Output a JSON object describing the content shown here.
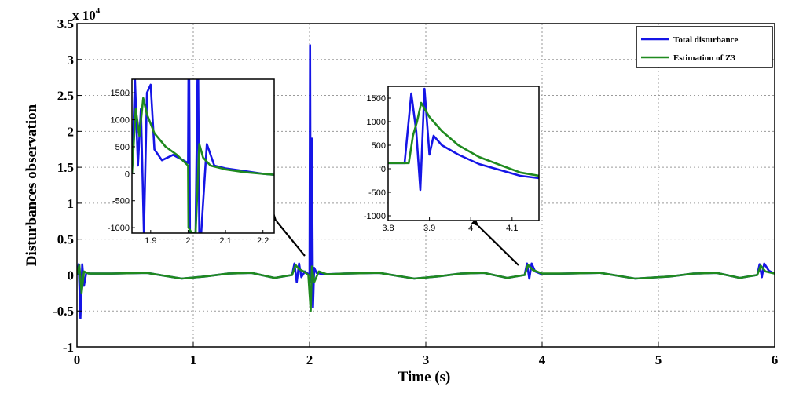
{
  "chart_data": {
    "type": "line",
    "xlabel": "Time (s)",
    "ylabel": "Disturbances observation",
    "y_multiplier": "x 10",
    "y_exponent": "4",
    "xlim": [
      0,
      6
    ],
    "ylim": [
      -1,
      3.5
    ],
    "xticks": [
      "0",
      "1",
      "2",
      "3",
      "4",
      "5",
      "6"
    ],
    "yticks": [
      "-1",
      "-0.5",
      "0",
      "0.5",
      "1",
      "1.5",
      "2",
      "2.5",
      "3",
      "3.5"
    ],
    "grid": true,
    "legend_position": "top-right",
    "colors": {
      "total": "#1515e6",
      "estimation": "#1f8a1f"
    },
    "series": [
      {
        "name": "Total disturbance",
        "color": "#1515e6",
        "x": [
          0,
          0.015,
          0.03,
          0.045,
          0.06,
          0.08,
          0.12,
          0.3,
          0.6,
          0.9,
          1.1,
          1.3,
          1.5,
          1.7,
          1.85,
          1.87,
          1.89,
          1.91,
          1.93,
          1.96,
          2.0,
          2.005,
          2.01,
          2.02,
          2.03,
          2.04,
          2.06,
          2.12,
          2.3,
          2.6,
          2.9,
          3.1,
          3.3,
          3.5,
          3.7,
          3.85,
          3.87,
          3.89,
          3.91,
          3.94,
          4.0,
          4.2,
          4.5,
          4.8,
          5.1,
          5.3,
          5.5,
          5.7,
          5.85,
          5.87,
          5.89,
          5.91,
          5.95,
          6.0
        ],
        "values": [
          0,
          0.15,
          -0.6,
          0.15,
          -0.15,
          0.03,
          0.02,
          0.02,
          0.03,
          -0.05,
          -0.02,
          0.02,
          0.03,
          -0.04,
          0,
          0.16,
          -0.1,
          0.16,
          -0.03,
          0.05,
          0,
          3.2,
          -0.1,
          1.9,
          -0.45,
          0.1,
          0.03,
          0.01,
          0.02,
          0.03,
          -0.05,
          -0.02,
          0.02,
          0.03,
          -0.04,
          0,
          0.16,
          -0.05,
          0.16,
          0.05,
          0.01,
          0.02,
          0.03,
          -0.05,
          -0.02,
          0.02,
          0.03,
          -0.04,
          0,
          0.15,
          -0.03,
          0.16,
          0.06,
          0.02
        ]
      },
      {
        "name": "Estimation of Z3",
        "color": "#1f8a1f",
        "x": [
          0,
          0.02,
          0.04,
          0.06,
          0.1,
          0.3,
          0.6,
          0.9,
          1.1,
          1.3,
          1.5,
          1.7,
          1.85,
          1.88,
          1.91,
          1.95,
          1.99,
          2.01,
          2.02,
          2.04,
          2.08,
          2.15,
          2.3,
          2.6,
          2.9,
          3.1,
          3.3,
          3.5,
          3.7,
          3.85,
          3.88,
          3.92,
          4.0,
          4.2,
          4.5,
          4.8,
          5.1,
          5.3,
          5.5,
          5.7,
          5.85,
          5.88,
          5.92,
          6.0
        ],
        "values": [
          0,
          0.14,
          -0.25,
          0.05,
          0.02,
          0.02,
          0.03,
          -0.05,
          -0.02,
          0.02,
          0.03,
          -0.04,
          0,
          0.14,
          0.08,
          0.05,
          0,
          -0.5,
          0.12,
          -0.1,
          0.05,
          0.01,
          0.02,
          0.03,
          -0.05,
          -0.02,
          0.02,
          0.03,
          -0.04,
          0,
          0.14,
          0.07,
          0.02,
          0.02,
          0.03,
          -0.05,
          -0.02,
          0.02,
          0.03,
          -0.04,
          0,
          0.13,
          0.05,
          0.02
        ]
      }
    ],
    "insets": [
      {
        "xlim": [
          1.85,
          2.23
        ],
        "ylim": [
          -1100,
          1750
        ],
        "xticks": [
          "1.9",
          "2",
          "2.1",
          "2.2"
        ],
        "yticks": [
          "1500",
          "1000",
          "500",
          "0",
          "-500",
          "-1000"
        ],
        "series": [
          {
            "name": "Total disturbance",
            "x": [
              1.85,
              1.858,
              1.866,
              1.874,
              1.882,
              1.89,
              1.9,
              1.91,
              1.93,
              1.96,
              2.0,
              2.001,
              2.003,
              2.005,
              2.02,
              2.025,
              2.027,
              2.03,
              2.035,
              2.05,
              2.07,
              2.1,
              2.15,
              2.2,
              2.23
            ],
            "values": [
              0,
              1750,
              150,
              1200,
              -1100,
              1500,
              1650,
              450,
              250,
              350,
              200,
              1750,
              1750,
              -1100,
              -1100,
              1750,
              1750,
              -1100,
              -1100,
              550,
              150,
              100,
              50,
              0,
              -20
            ]
          },
          {
            "name": "Estimation of Z3",
            "x": [
              1.85,
              1.86,
              1.87,
              1.88,
              1.89,
              1.91,
              1.94,
              1.97,
              2.0,
              2.001,
              2.01,
              2.02,
              2.03,
              2.04,
              2.06,
              2.1,
              2.15,
              2.2,
              2.23
            ],
            "values": [
              0,
              1200,
              700,
              1400,
              1100,
              750,
              500,
              350,
              150,
              -1000,
              -1100,
              -1100,
              550,
              300,
              150,
              80,
              30,
              0,
              -20
            ]
          }
        ]
      },
      {
        "xlim": [
          3.8,
          4.165
        ],
        "ylim": [
          -1100,
          1750
        ],
        "xticks": [
          "3.8",
          "3.9",
          "4",
          "4.1"
        ],
        "yticks": [
          "1500",
          "1000",
          "500",
          "0",
          "-500",
          "-1000"
        ],
        "series": [
          {
            "name": "Total disturbance",
            "x": [
              3.8,
              3.84,
              3.856,
              3.868,
              3.878,
              3.888,
              3.9,
              3.91,
              3.93,
              3.97,
              4.02,
              4.08,
              4.12,
              4.165
            ],
            "values": [
              120,
              120,
              1600,
              800,
              -450,
              1700,
              300,
              700,
              500,
              300,
              100,
              -50,
              -150,
              -200
            ]
          },
          {
            "name": "Estimation of Z3",
            "x": [
              3.8,
              3.85,
              3.86,
              3.87,
              3.88,
              3.9,
              3.93,
              3.97,
              4.02,
              4.08,
              4.12,
              4.165
            ],
            "values": [
              120,
              120,
              700,
              1000,
              1400,
              1100,
              800,
              500,
              250,
              50,
              -80,
              -150
            ]
          }
        ]
      }
    ]
  }
}
